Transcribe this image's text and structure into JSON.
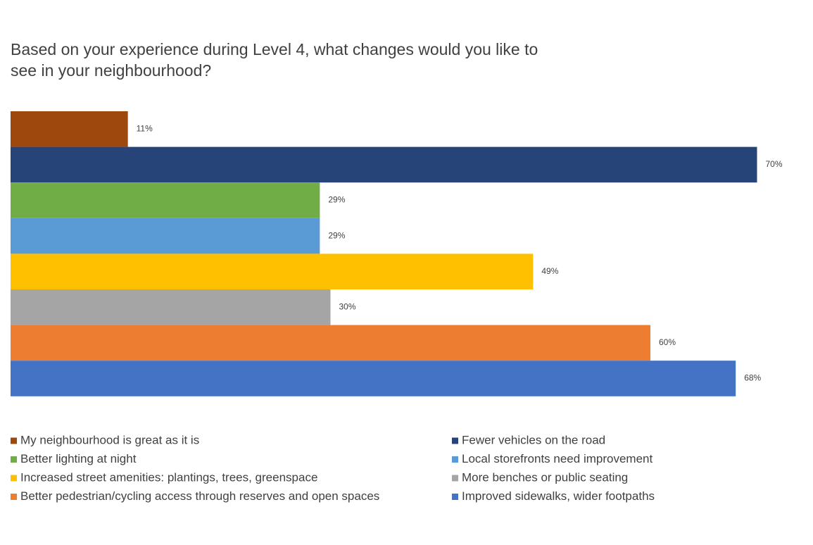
{
  "chart_data": {
    "type": "bar",
    "orientation": "horizontal",
    "title": "Based on your experience during Level 4, what changes would you like to see in your neighbourhood?",
    "series": [
      {
        "name": "My neighbourhood is great as it is",
        "color": "#9E480E",
        "values": [
          11
        ],
        "value_labels": [
          "11%"
        ]
      },
      {
        "name": "Fewer vehicles on the road",
        "color": "#264478",
        "values": [
          70
        ],
        "value_labels": [
          "70%"
        ]
      },
      {
        "name": "Better lighting at night",
        "color": "#70AD47",
        "values": [
          29
        ],
        "value_labels": [
          "29%"
        ]
      },
      {
        "name": "Local storefronts need improvement",
        "color": "#5B9BD5",
        "values": [
          29
        ],
        "value_labels": [
          "29%"
        ]
      },
      {
        "name": "Increased street amenities: plantings, trees, greenspace",
        "color": "#FFC000",
        "values": [
          49
        ],
        "value_labels": [
          "49%"
        ]
      },
      {
        "name": "More benches or public seating",
        "color": "#A5A5A5",
        "values": [
          30
        ],
        "value_labels": [
          "30%"
        ]
      },
      {
        "name": "Better pedestrian/cycling access through reserves and open spaces",
        "color": "#ED7D31",
        "values": [
          60
        ],
        "value_labels": [
          "60%"
        ]
      },
      {
        "name": "Improved sidewalks, wider footpaths",
        "color": "#4472C4",
        "values": [
          68
        ],
        "value_labels": [
          "68%"
        ]
      }
    ],
    "legend": "bottom"
  }
}
